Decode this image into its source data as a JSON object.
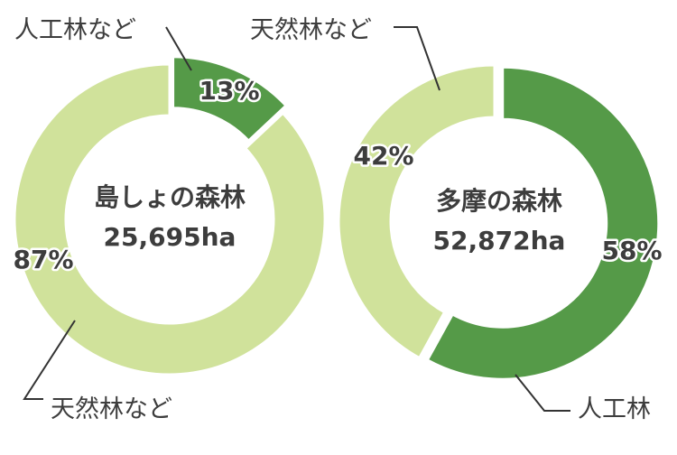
{
  "colors": {
    "planted": "#559a48",
    "natural": "#d0e29b",
    "text": "#3d3d3d"
  },
  "chart_data": [
    {
      "type": "pie",
      "title": "島しょの森林",
      "subtitle": "25,695ha",
      "slices": [
        {
          "label": "人工林など",
          "value": 13,
          "value_label": "13%",
          "color": "#559a48"
        },
        {
          "label": "天然林など",
          "value": 87,
          "value_label": "87%",
          "color": "#d0e29b"
        }
      ]
    },
    {
      "type": "pie",
      "title": "多摩の森林",
      "subtitle": "52,872ha",
      "slices": [
        {
          "label": "人工林",
          "value": 58,
          "value_label": "58%",
          "color": "#559a48"
        },
        {
          "label": "天然林など",
          "value": 42,
          "value_label": "42%",
          "color": "#d0e29b"
        }
      ]
    }
  ]
}
